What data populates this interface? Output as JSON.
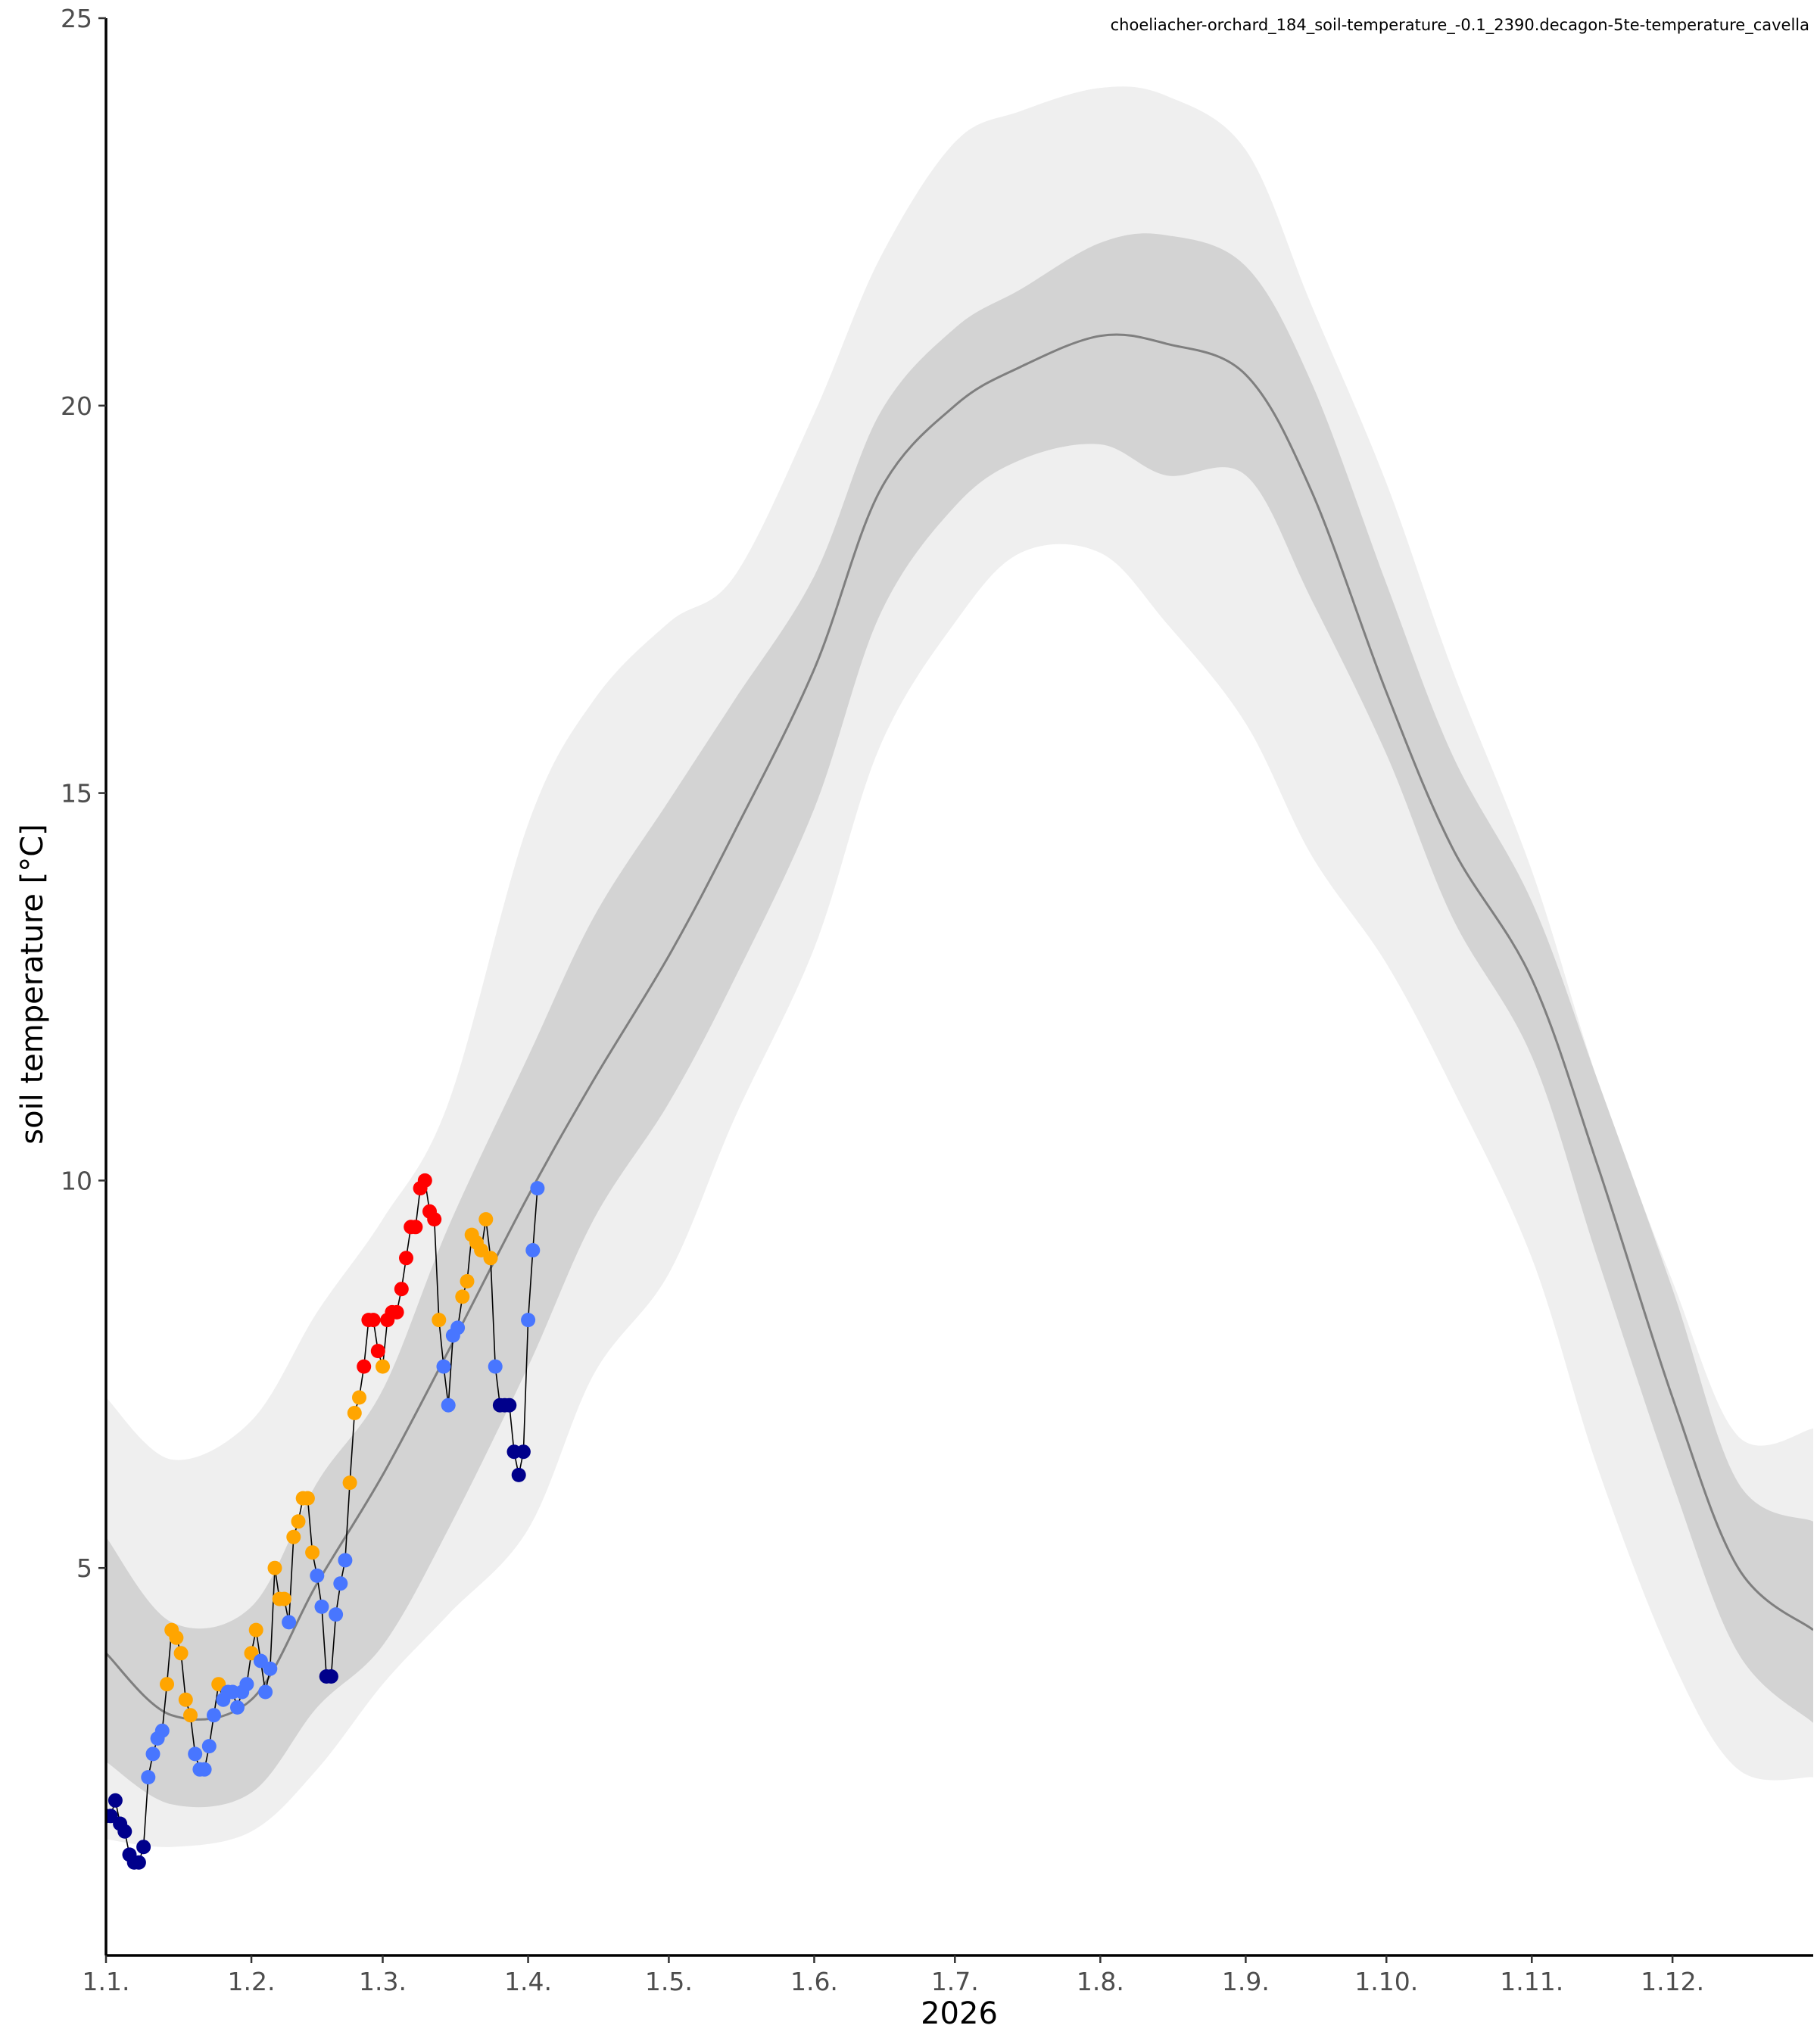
{
  "chart_data": {
    "type": "line",
    "title": "",
    "subtitle": "choeliacher-orchard_184_soil-temperature_-0.1_2390.decagon-5te-temperature_cavella",
    "xlabel": "2026",
    "ylabel": "soil temperature [°C]",
    "xlim": [
      "2026-01-01",
      "2026-12-31"
    ],
    "ylim": [
      0,
      25
    ],
    "grid": false,
    "legend": "none",
    "x_ticks": [
      {
        "date": "2026-01-01",
        "label": "1.1."
      },
      {
        "date": "2026-02-01",
        "label": "1.2."
      },
      {
        "date": "2026-03-01",
        "label": "1.3."
      },
      {
        "date": "2026-04-01",
        "label": "1.4."
      },
      {
        "date": "2026-05-01",
        "label": "1.5."
      },
      {
        "date": "2026-06-01",
        "label": "1.6."
      },
      {
        "date": "2026-07-01",
        "label": "1.7."
      },
      {
        "date": "2026-08-01",
        "label": "1.8."
      },
      {
        "date": "2026-09-01",
        "label": "1.9."
      },
      {
        "date": "2026-10-01",
        "label": "1.10."
      },
      {
        "date": "2026-11-01",
        "label": "1.11."
      },
      {
        "date": "2026-12-01",
        "label": "1.12."
      }
    ],
    "y_ticks": [
      {
        "value": 5,
        "label": "5"
      },
      {
        "value": 10,
        "label": "10"
      },
      {
        "value": 15,
        "label": "15"
      },
      {
        "value": 20,
        "label": "20"
      },
      {
        "value": 25,
        "label": "25"
      }
    ],
    "colors": {
      "outer_band": "#efefef",
      "inner_band": "#d3d3d3",
      "median_line": "#7f7f7f",
      "observed_line": "#000000",
      "category_colors": {
        "very_cold": "#00008b",
        "cold": "#4876ff",
        "warm": "#ffa500",
        "very_warm": "#ff0000"
      }
    },
    "climatology": {
      "x": [
        "2026-01-01",
        "2026-01-15",
        "2026-02-01",
        "2026-02-15",
        "2026-03-01",
        "2026-03-15",
        "2026-04-01",
        "2026-04-15",
        "2026-05-01",
        "2026-05-15",
        "2026-06-01",
        "2026-06-15",
        "2026-07-01",
        "2026-07-15",
        "2026-08-01",
        "2026-08-15",
        "2026-09-01",
        "2026-09-15",
        "2026-10-01",
        "2026-10-15",
        "2026-11-01",
        "2026-11-15",
        "2026-12-01",
        "2026-12-15",
        "2026-12-31"
      ],
      "median": [
        3.9,
        3.1,
        3.3,
        4.8,
        6.2,
        7.8,
        9.8,
        11.3,
        12.9,
        14.5,
        16.6,
        18.9,
        20.0,
        20.5,
        20.9,
        20.8,
        20.4,
        18.9,
        16.3,
        14.3,
        12.6,
        10.2,
        7.2,
        5.0,
        4.2
      ],
      "inner_lower": [
        2.5,
        1.95,
        2.1,
        3.2,
        4.0,
        5.5,
        7.6,
        9.5,
        11.0,
        12.6,
        14.8,
        17.3,
        18.7,
        19.3,
        19.5,
        19.1,
        19.1,
        17.5,
        15.5,
        13.4,
        11.6,
        9.0,
        6.1,
        3.9,
        3.0
      ],
      "inner_upper": [
        5.4,
        4.3,
        4.5,
        6.1,
        7.3,
        9.4,
        11.6,
        13.4,
        14.9,
        16.2,
        17.8,
        19.9,
        21.0,
        21.5,
        22.1,
        22.2,
        21.8,
        20.3,
        17.7,
        15.5,
        13.6,
        11.3,
        8.6,
        6.1,
        5.6
      ],
      "outer_lower": [
        1.5,
        1.4,
        1.6,
        2.4,
        3.5,
        4.4,
        5.5,
        7.5,
        8.8,
        10.8,
        13.0,
        15.6,
        17.2,
        18.1,
        18.1,
        17.2,
        15.9,
        14.2,
        12.8,
        11.2,
        9.0,
        6.3,
        3.8,
        2.4,
        2.3
      ],
      "outer_upper": [
        7.2,
        6.4,
        6.9,
        8.3,
        9.5,
        11.0,
        14.6,
        16.2,
        17.2,
        17.8,
        19.9,
        21.9,
        23.4,
        23.8,
        24.1,
        24.0,
        23.3,
        21.3,
        19.0,
        16.6,
        14.0,
        11.3,
        8.7,
        6.7,
        6.8
      ]
    },
    "observed": {
      "x": [
        "2026-01-01",
        "2026-01-02",
        "2026-01-03",
        "2026-01-04",
        "2026-01-05",
        "2026-01-06",
        "2026-01-07",
        "2026-01-08",
        "2026-01-09",
        "2026-01-10",
        "2026-01-11",
        "2026-01-12",
        "2026-01-13",
        "2026-01-14",
        "2026-01-15",
        "2026-01-16",
        "2026-01-17",
        "2026-01-18",
        "2026-01-19",
        "2026-01-20",
        "2026-01-21",
        "2026-01-22",
        "2026-01-23",
        "2026-01-24",
        "2026-01-25",
        "2026-01-26",
        "2026-01-27",
        "2026-01-28",
        "2026-01-29",
        "2026-01-30",
        "2026-01-31",
        "2026-02-01",
        "2026-02-02",
        "2026-02-03",
        "2026-02-04",
        "2026-02-05",
        "2026-02-06",
        "2026-02-07",
        "2026-02-08",
        "2026-02-09",
        "2026-02-10",
        "2026-02-11",
        "2026-02-12",
        "2026-02-13",
        "2026-02-14",
        "2026-02-15",
        "2026-02-16",
        "2026-02-17",
        "2026-02-18",
        "2026-02-19",
        "2026-02-20",
        "2026-02-21",
        "2026-02-22",
        "2026-02-23",
        "2026-02-24",
        "2026-02-25",
        "2026-02-26",
        "2026-02-27",
        "2026-02-28",
        "2026-03-01",
        "2026-03-02",
        "2026-03-03",
        "2026-03-04",
        "2026-03-05",
        "2026-03-06",
        "2026-03-07",
        "2026-03-08",
        "2026-03-09",
        "2026-03-10",
        "2026-03-11",
        "2026-03-12",
        "2026-03-13",
        "2026-03-14",
        "2026-03-15",
        "2026-03-16",
        "2026-03-17",
        "2026-03-18",
        "2026-03-19",
        "2026-03-20",
        "2026-03-21",
        "2026-03-22",
        "2026-03-23",
        "2026-03-24",
        "2026-03-25",
        "2026-03-26",
        "2026-03-27",
        "2026-03-28",
        "2026-03-29",
        "2026-03-30",
        "2026-03-31",
        "2026-04-01",
        "2026-04-02",
        "2026-04-03"
      ],
      "values": [
        1.8,
        1.8,
        2.0,
        1.7,
        1.6,
        1.3,
        1.2,
        1.2,
        1.4,
        2.3,
        2.6,
        2.8,
        2.9,
        3.5,
        4.2,
        4.1,
        3.9,
        3.3,
        3.1,
        2.6,
        2.4,
        2.4,
        2.7,
        3.1,
        3.5,
        3.3,
        3.4,
        3.4,
        3.2,
        3.4,
        3.5,
        3.9,
        4.2,
        3.8,
        3.4,
        3.7,
        5.0,
        4.6,
        4.6,
        4.3,
        5.4,
        5.6,
        5.9,
        5.9,
        5.2,
        4.9,
        4.5,
        3.6,
        3.6,
        4.4,
        4.8,
        5.1,
        6.1,
        7.0,
        7.2,
        7.6,
        8.2,
        8.2,
        7.8,
        7.6,
        8.2,
        8.3,
        8.3,
        8.6,
        9.0,
        9.4,
        9.4,
        9.9,
        10.0,
        9.6,
        9.5,
        8.2,
        7.6,
        7.1,
        8.0,
        8.1,
        8.5,
        8.7,
        9.3,
        9.2,
        9.1,
        9.5,
        9.0,
        7.6,
        7.1,
        7.1,
        7.1,
        6.5,
        6.2,
        6.5,
        8.2,
        9.1,
        9.9
      ],
      "category": [
        "very_cold",
        "very_cold",
        "very_cold",
        "very_cold",
        "very_cold",
        "very_cold",
        "very_cold",
        "very_cold",
        "very_cold",
        "cold",
        "cold",
        "cold",
        "cold",
        "warm",
        "warm",
        "warm",
        "warm",
        "warm",
        "warm",
        "cold",
        "cold",
        "cold",
        "cold",
        "cold",
        "warm",
        "cold",
        "cold",
        "cold",
        "cold",
        "cold",
        "cold",
        "warm",
        "warm",
        "cold",
        "cold",
        "cold",
        "warm",
        "warm",
        "warm",
        "cold",
        "warm",
        "warm",
        "warm",
        "warm",
        "warm",
        "cold",
        "cold",
        "very_cold",
        "very_cold",
        "cold",
        "cold",
        "cold",
        "warm",
        "warm",
        "warm",
        "very_warm",
        "very_warm",
        "very_warm",
        "very_warm",
        "warm",
        "very_warm",
        "very_warm",
        "very_warm",
        "very_warm",
        "very_warm",
        "very_warm",
        "very_warm",
        "very_warm",
        "very_warm",
        "very_warm",
        "very_warm",
        "warm",
        "cold",
        "cold",
        "cold",
        "cold",
        "warm",
        "warm",
        "warm",
        "warm",
        "warm",
        "warm",
        "warm",
        "cold",
        "very_cold",
        "very_cold",
        "very_cold",
        "very_cold",
        "very_cold",
        "very_cold",
        "cold",
        "cold",
        "cold"
      ]
    }
  }
}
